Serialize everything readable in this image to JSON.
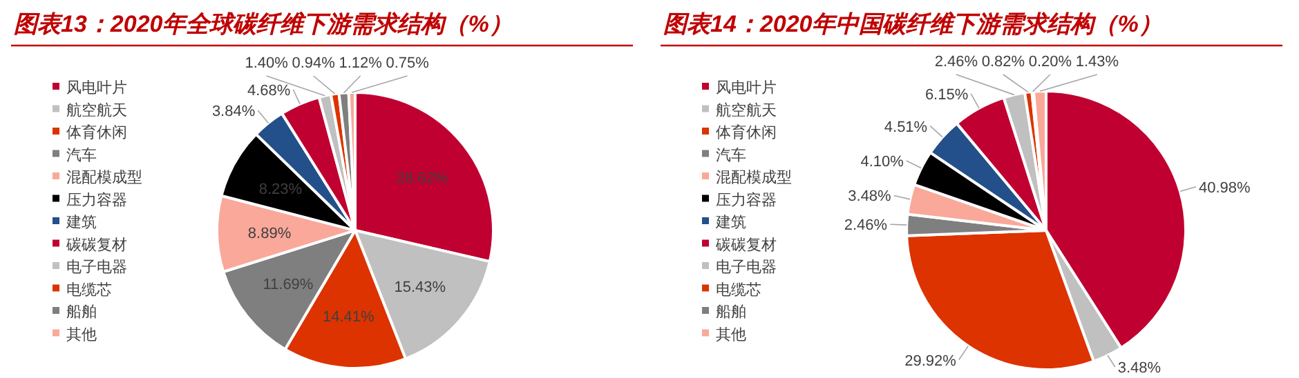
{
  "chart_data": [
    {
      "type": "pie",
      "title": "图表13：2020年全球碳纤维下游需求结构（%）",
      "legend": "left",
      "categories": [
        "风电叶片",
        "航空航天",
        "体育休闲",
        "汽车",
        "混配模成型",
        "压力容器",
        "建筑",
        "碳碳复材",
        "电子电器",
        "电缆芯",
        "船舶",
        "其他"
      ],
      "values": [
        28.62,
        15.43,
        14.41,
        11.69,
        8.89,
        8.23,
        3.84,
        4.68,
        1.4,
        0.94,
        1.12,
        0.75
      ],
      "value_labels": [
        "28.62%",
        "15.43%",
        "14.41%",
        "11.69%",
        "8.89%",
        "8.23%",
        "3.84%",
        "4.68%",
        "1.40%",
        "0.94%",
        "1.12%",
        "0.75%"
      ],
      "colors": [
        "#c00030",
        "#c0c0c0",
        "#dc3300",
        "#7f7f7f",
        "#f9a89a",
        "#000000",
        "#23508a",
        "#c00030",
        "#c0c0c0",
        "#dc3300",
        "#7f7f7f",
        "#f9a89a"
      ]
    },
    {
      "type": "pie",
      "title": "图表14：2020年中国碳纤维下游需求结构（%）",
      "legend": "left",
      "categories": [
        "风电叶片",
        "航空航天",
        "体育休闲",
        "汽车",
        "混配模成型",
        "压力容器",
        "建筑",
        "碳碳复材",
        "电子电器",
        "电缆芯",
        "船舶",
        "其他"
      ],
      "values": [
        40.98,
        3.48,
        29.92,
        2.46,
        3.48,
        4.1,
        4.51,
        6.15,
        2.46,
        0.82,
        0.2,
        1.43
      ],
      "value_labels": [
        "40.98%",
        "3.48%",
        "29.92%",
        "2.46%",
        "3.48%",
        "4.10%",
        "4.51%",
        "6.15%",
        "2.46%",
        "0.82%",
        "0.20%",
        "1.43%"
      ],
      "colors": [
        "#c00030",
        "#c0c0c0",
        "#dc3300",
        "#7f7f7f",
        "#f9a89a",
        "#000000",
        "#23508a",
        "#c00030",
        "#c0c0c0",
        "#dc3300",
        "#7f7f7f",
        "#f9a89a"
      ]
    }
  ]
}
